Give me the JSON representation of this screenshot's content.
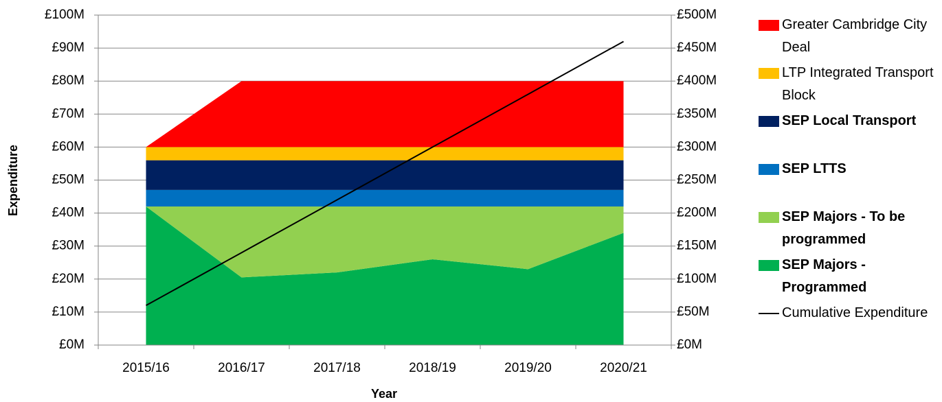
{
  "chart_data": {
    "type": "area",
    "x_label": "Year",
    "y_label": "Expenditure",
    "categories": [
      "2015/16",
      "2016/17",
      "2017/18",
      "2018/19",
      "2019/20",
      "2020/21"
    ],
    "series": [
      {
        "name": "Greater Cambridge City Deal",
        "color": "#ff0000",
        "values": [
          0,
          20,
          20,
          20,
          20,
          20
        ]
      },
      {
        "name": "LTP Integrated Transport Block",
        "color": "#ffc000",
        "values": [
          4,
          4,
          4,
          4,
          4,
          4
        ]
      },
      {
        "name": "SEP Local Transport",
        "color": "#002060",
        "values": [
          9,
          9,
          9,
          9,
          9,
          9
        ]
      },
      {
        "name": "SEP LTTS",
        "color": "#0070c0",
        "values": [
          5,
          5,
          5,
          5,
          5,
          5
        ]
      },
      {
        "name": "SEP Majors - To be programmed",
        "color": "#92d050",
        "values": [
          0,
          21.5,
          20,
          16,
          19,
          8
        ]
      },
      {
        "name": "SEP Majors - Programmed",
        "color": "#00b050",
        "values": [
          42,
          20.5,
          22,
          26,
          23,
          34
        ]
      },
      {
        "name": "Cumulative Expenditure",
        "color": "#000000",
        "type": "line",
        "axis": "y2",
        "values": [
          60,
          140,
          220,
          300,
          380,
          460
        ]
      }
    ],
    "stacked": true,
    "grid": true,
    "ylim": [
      0,
      100
    ],
    "yticks": [
      {
        "value": 0,
        "label": "£0M"
      },
      {
        "value": 10,
        "label": "£10M"
      },
      {
        "value": 20,
        "label": "£20M"
      },
      {
        "value": 30,
        "label": "£30M"
      },
      {
        "value": 40,
        "label": "£40M"
      },
      {
        "value": 50,
        "label": "£50M"
      },
      {
        "value": 60,
        "label": "£60M"
      },
      {
        "value": 70,
        "label": "£70M"
      },
      {
        "value": 80,
        "label": "£80M"
      },
      {
        "value": 90,
        "label": "£90M"
      },
      {
        "value": 100,
        "label": "£100M"
      }
    ],
    "y2lim": [
      0,
      500
    ],
    "y2ticks": [
      {
        "value": 0,
        "label": "£0M"
      },
      {
        "value": 50,
        "label": "£50M"
      },
      {
        "value": 100,
        "label": "£100M"
      },
      {
        "value": 150,
        "label": "£150M"
      },
      {
        "value": 200,
        "label": "£200M"
      },
      {
        "value": 250,
        "label": "£250M"
      },
      {
        "value": 300,
        "label": "£300M"
      },
      {
        "value": 350,
        "label": "£350M"
      },
      {
        "value": 400,
        "label": "£400M"
      },
      {
        "value": 450,
        "label": "£450M"
      },
      {
        "value": 500,
        "label": "£500M"
      }
    ],
    "legend": "right"
  }
}
